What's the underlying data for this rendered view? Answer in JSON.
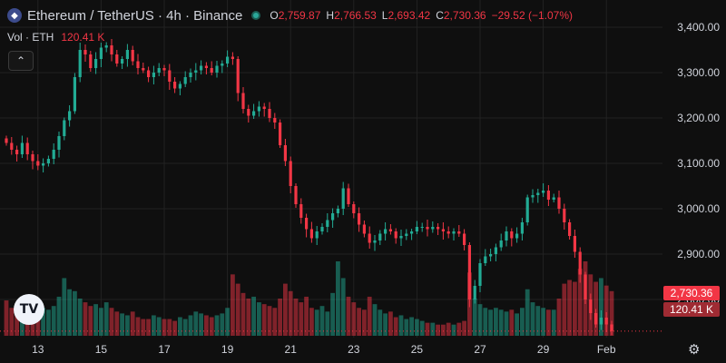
{
  "header": {
    "logo_icon": "ethereum-icon",
    "title": "Ethereum / TetherUS · 4h · Binance",
    "ohlc": {
      "o_label": "O",
      "o_value": "2,759.87",
      "h_label": "H",
      "h_value": "2,766.53",
      "l_label": "L",
      "l_value": "2,693.42",
      "c_label": "C",
      "c_value": "2,730.36",
      "change": "−29.52 (−1.07%)"
    },
    "volume_label": "Vol · ETH",
    "volume_value": "120.41 K"
  },
  "last_price_label": "2,730.36",
  "last_volume_label": "120.41 K",
  "colors": {
    "up": "#22ab94",
    "down": "#f23645",
    "background": "#0f0f0f",
    "grid": "#222222",
    "text": "#d1d4dc"
  },
  "chart_data": {
    "type": "candlestick",
    "symbol": "ETHUSDT",
    "interval": "4h",
    "ylim": [
      2720,
      3420
    ],
    "y_ticks": [
      2800,
      2900,
      3000,
      3100,
      3200,
      3300,
      3400
    ],
    "y_tick_labels": [
      "2,800.00",
      "2,900.00",
      "3,000.00",
      "3,100.00",
      "3,200.00",
      "3,300.00",
      "3,400.00"
    ],
    "x_tick_labels": [
      "13",
      "15",
      "17",
      "19",
      "21",
      "23",
      "25",
      "27",
      "29",
      "Feb"
    ],
    "candles_per_day": 6,
    "last_close": 2730.36,
    "closes": [
      3145,
      3130,
      3120,
      3145,
      3120,
      3105,
      3095,
      3100,
      3110,
      3130,
      3160,
      3195,
      3215,
      3290,
      3350,
      3340,
      3310,
      3330,
      3355,
      3360,
      3340,
      3320,
      3330,
      3350,
      3325,
      3310,
      3305,
      3290,
      3300,
      3310,
      3305,
      3280,
      3265,
      3275,
      3290,
      3300,
      3305,
      3315,
      3310,
      3300,
      3315,
      3320,
      3335,
      3330,
      3255,
      3220,
      3205,
      3215,
      3225,
      3220,
      3200,
      3190,
      3140,
      3105,
      3050,
      3010,
      2980,
      2955,
      2935,
      2950,
      2960,
      2975,
      2990,
      3000,
      3045,
      3010,
      2990,
      2965,
      2945,
      2925,
      2930,
      2945,
      2955,
      2950,
      2935,
      2940,
      2945,
      2950,
      2960,
      2960,
      2955,
      2960,
      2955,
      2950,
      2945,
      2950,
      2945,
      2920,
      2800,
      2830,
      2880,
      2895,
      2900,
      2915,
      2930,
      2950,
      2935,
      2945,
      2970,
      3025,
      3030,
      3035,
      3040,
      3020,
      3025,
      3000,
      2970,
      2940,
      2905,
      2855,
      2800,
      2770,
      2745,
      2760,
      2745,
      2730.36
    ],
    "volumes": [
      38,
      30,
      26,
      33,
      22,
      24,
      36,
      30,
      28,
      32,
      42,
      62,
      50,
      48,
      40,
      36,
      32,
      34,
      30,
      36,
      30,
      26,
      24,
      22,
      26,
      20,
      18,
      18,
      22,
      20,
      18,
      18,
      16,
      20,
      18,
      22,
      26,
      24,
      22,
      20,
      22,
      24,
      30,
      66,
      56,
      46,
      40,
      42,
      36,
      34,
      32,
      30,
      40,
      56,
      48,
      40,
      36,
      42,
      30,
      28,
      32,
      26,
      46,
      80,
      62,
      42,
      36,
      30,
      28,
      42,
      34,
      28,
      24,
      26,
      20,
      22,
      18,
      20,
      18,
      16,
      14,
      14,
      12,
      12,
      14,
      12,
      14,
      16,
      68,
      40,
      34,
      30,
      28,
      30,
      28,
      26,
      28,
      24,
      30,
      50,
      36,
      32,
      30,
      28,
      28,
      40,
      56,
      60,
      58,
      72,
      80,
      66,
      58,
      62,
      54,
      48
    ]
  }
}
